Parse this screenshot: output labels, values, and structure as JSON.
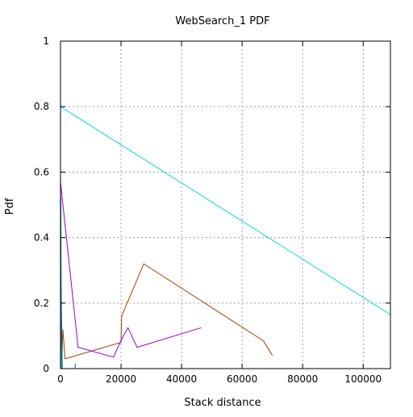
{
  "chart_data": {
    "type": "line",
    "title": "WebSearch_1 PDF",
    "xlabel": "Stack distance",
    "ylabel": "Pdf",
    "xlim": [
      0,
      109000
    ],
    "ylim": [
      0,
      1
    ],
    "grid": true,
    "x_ticks": [
      {
        "value": 0,
        "label": "0"
      },
      {
        "value": 20000,
        "label": "20000"
      },
      {
        "value": 40000,
        "label": "40000"
      },
      {
        "value": 60000,
        "label": "60000"
      },
      {
        "value": 80000,
        "label": "80000"
      },
      {
        "value": 100000,
        "label": "100000"
      }
    ],
    "y_ticks": [
      {
        "value": 0,
        "label": "0"
      },
      {
        "value": 0.2,
        "label": "0.2"
      },
      {
        "value": 0.4,
        "label": "0.4"
      },
      {
        "value": 0.6,
        "label": "0.6"
      },
      {
        "value": 0.8,
        "label": "0.8"
      },
      {
        "value": 1,
        "label": "1"
      }
    ],
    "series": [
      {
        "color": "#00d8e8",
        "points": [
          [
            0,
            0.8
          ],
          [
            109000,
            0.165
          ]
        ]
      },
      {
        "color": "#a04000",
        "points": [
          [
            200,
            0.24
          ],
          [
            500,
            0.05
          ],
          [
            800,
            0.12
          ],
          [
            1500,
            0.03
          ],
          [
            20000,
            0.08
          ],
          [
            20200,
            0.16
          ],
          [
            27500,
            0.32
          ],
          [
            67000,
            0.085
          ],
          [
            70000,
            0.04
          ]
        ]
      },
      {
        "color": "#9400d3",
        "points": [
          [
            0,
            0.57
          ],
          [
            5800,
            0.065
          ],
          [
            17500,
            0.035
          ],
          [
            20200,
            0.09
          ],
          [
            22300,
            0.125
          ],
          [
            25300,
            0.065
          ],
          [
            46500,
            0.125
          ]
        ]
      },
      {
        "color": "#00a060",
        "points": [
          [
            100,
            0.52
          ],
          [
            300,
            0.0
          ]
        ]
      },
      {
        "color": "#0060c0",
        "points": [
          [
            0,
            0.59
          ],
          [
            200,
            0.16
          ],
          [
            600,
            0.0
          ],
          [
            4800,
            0.0
          ],
          [
            4900,
            0.015
          ]
        ]
      }
    ]
  }
}
